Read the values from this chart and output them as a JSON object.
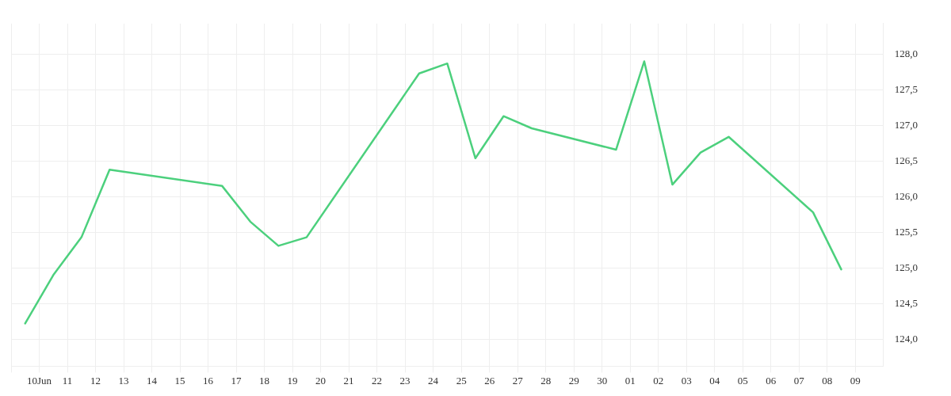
{
  "chart_data": {
    "type": "line",
    "x": [
      "--06-09T12:00",
      "--06-10T12:00",
      "--06-11T12:00",
      "--06-12T12:00",
      "--06-16T12:00",
      "--06-17T12:00",
      "--06-18T12:00",
      "--06-19T12:00",
      "--06-23T12:00",
      "--06-24T12:00",
      "--06-25T12:00",
      "--06-26T12:00",
      "--06-27T12:00",
      "--06-30T12:00",
      "--07-01T12:00",
      "--07-02T12:00",
      "--07-03T12:00",
      "--07-04T12:00",
      "--07-07T12:00",
      "--07-08T12:00"
    ],
    "series": [
      {
        "color": "#4cd07d",
        "values": [
          124.22,
          124.9,
          125.43,
          126.38,
          126.15,
          125.65,
          125.31,
          125.43,
          127.73,
          127.87,
          126.54,
          127.13,
          126.96,
          126.66,
          127.9,
          126.17,
          126.62,
          126.84,
          125.78,
          124.98
        ]
      }
    ],
    "xlim": [
      "--06-09",
      "--07-10"
    ],
    "xticks": [
      {
        "value": "--06-09",
        "label": null
      },
      {
        "value": "--06-10",
        "label": "10Jun"
      },
      {
        "value": "--06-11",
        "label": "11"
      },
      {
        "value": "--06-12",
        "label": "12"
      },
      {
        "value": "--06-13",
        "label": "13"
      },
      {
        "value": "--06-14",
        "label": "14"
      },
      {
        "value": "--06-15",
        "label": "15"
      },
      {
        "value": "--06-16",
        "label": "16"
      },
      {
        "value": "--06-17",
        "label": "17"
      },
      {
        "value": "--06-18",
        "label": "18"
      },
      {
        "value": "--06-19",
        "label": "19"
      },
      {
        "value": "--06-20",
        "label": "20"
      },
      {
        "value": "--06-21",
        "label": "21"
      },
      {
        "value": "--06-22",
        "label": "22"
      },
      {
        "value": "--06-23",
        "label": "23"
      },
      {
        "value": "--06-24",
        "label": "24"
      },
      {
        "value": "--06-25",
        "label": "25"
      },
      {
        "value": "--06-26",
        "label": "26"
      },
      {
        "value": "--06-27",
        "label": "27"
      },
      {
        "value": "--06-28",
        "label": "28"
      },
      {
        "value": "--06-29",
        "label": "29"
      },
      {
        "value": "--06-30",
        "label": "30"
      },
      {
        "value": "--07-01",
        "label": "01"
      },
      {
        "value": "--07-02",
        "label": "02"
      },
      {
        "value": "--07-03",
        "label": "03"
      },
      {
        "value": "--07-04",
        "label": "04"
      },
      {
        "value": "--07-05",
        "label": "05"
      },
      {
        "value": "--07-06",
        "label": "06"
      },
      {
        "value": "--07-07",
        "label": "07"
      },
      {
        "value": "--07-08",
        "label": "08"
      },
      {
        "value": "--07-09",
        "label": "09"
      }
    ],
    "ylim": [
      123.62,
      128.43
    ],
    "yticks": [
      {
        "value": 124,
        "label": "124,0"
      },
      {
        "value": 124.5,
        "label": "124,5"
      },
      {
        "value": 125,
        "label": "125,0"
      },
      {
        "value": 125.5,
        "label": "125,5"
      },
      {
        "value": 126,
        "label": "126,0"
      },
      {
        "value": 126.5,
        "label": "126,5"
      },
      {
        "value": 127,
        "label": "127,0"
      },
      {
        "value": 127.5,
        "label": "127,5"
      },
      {
        "value": 128,
        "label": "128,0"
      }
    ],
    "grid": true,
    "legend": false,
    "marker": "none",
    "line_style": "solid"
  }
}
